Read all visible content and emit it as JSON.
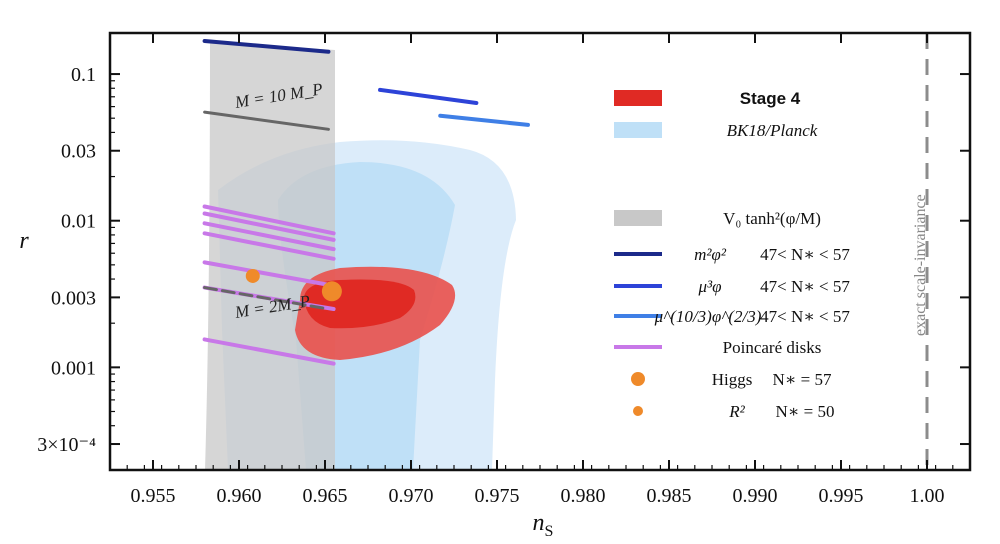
{
  "chart_data": {
    "type": "scatter",
    "xlabel": "n_S",
    "ylabel": "r",
    "xlim": [
      0.9525,
      1.0025
    ],
    "ylim_log10": [
      -3.7,
      -0.72
    ],
    "y_scale": "log",
    "x_ticks": [
      0.955,
      0.96,
      0.965,
      0.97,
      0.975,
      0.98,
      0.985,
      0.99,
      0.995,
      1.0
    ],
    "x_tick_labels": [
      "0.955",
      "0.960",
      "0.965",
      "0.970",
      "0.975",
      "0.980",
      "0.985",
      "0.990",
      "0.995",
      "1.00"
    ],
    "y_ticks": [
      0.1,
      0.03,
      0.01,
      0.003,
      0.001,
      0.0003
    ],
    "y_tick_labels": [
      "0.1",
      "0.03",
      "0.01",
      "0.003",
      "0.001",
      "3×10⁻⁴"
    ],
    "legend_placement": "right",
    "grid": false,
    "colors": {
      "stage4_outer": "#e9514b",
      "stage4_inner": "#e02a24",
      "bk18_outer": "#dcecfa",
      "bk18_inner": "#bfe0f7",
      "tanh_band": "#d0d0d0",
      "phi2": "#1c2a8a",
      "phi1": "#2d43d8",
      "phi23": "#3f7fe6",
      "poincare": "#c878e8",
      "higgs_dot": "#ef8a2a",
      "tanh_line": "#666666",
      "scale_inv": "#8c8c8c"
    },
    "series": [
      {
        "name": "μ³φ",
        "type": "line",
        "x": [
          0.9682,
          0.9738
        ],
        "y": [
          0.078,
          0.0635
        ]
      },
      {
        "name": "μ^(10/3)φ^(2/3)",
        "type": "line",
        "x": [
          0.9717,
          0.9768
        ],
        "y": [
          0.052,
          0.045
        ]
      },
      {
        "name": "m²φ²",
        "type": "line",
        "x": [
          0.958,
          0.9652
        ],
        "y": [
          0.168,
          0.142
        ]
      },
      {
        "name": "Higgs",
        "type": "point",
        "x": [
          0.9654
        ],
        "y": [
          0.0033
        ]
      },
      {
        "name": "R²",
        "type": "point",
        "x": [
          0.9608
        ],
        "y": [
          0.0042
        ]
      },
      {
        "name": "M = 10 M_P",
        "type": "line",
        "x": [
          0.958,
          0.9652
        ],
        "y": [
          0.055,
          0.042
        ]
      },
      {
        "name": "M = 2M_P",
        "type": "line",
        "x": [
          0.958,
          0.9652
        ],
        "y": [
          0.0035,
          0.0025
        ]
      }
    ],
    "poincare_segments": [
      {
        "x": [
          0.958,
          0.9655
        ],
        "y": [
          0.0125,
          0.0082
        ]
      },
      {
        "x": [
          0.958,
          0.9655
        ],
        "y": [
          0.0112,
          0.0074
        ]
      },
      {
        "x": [
          0.958,
          0.9655
        ],
        "y": [
          0.0096,
          0.0064
        ]
      },
      {
        "x": [
          0.958,
          0.9655
        ],
        "y": [
          0.0082,
          0.0055
        ]
      },
      {
        "x": [
          0.958,
          0.9655
        ],
        "y": [
          0.0052,
          0.0036
        ]
      },
      {
        "x": [
          0.958,
          0.9655
        ],
        "y": [
          0.0035,
          0.0025
        ]
      },
      {
        "x": [
          0.958,
          0.9655
        ],
        "y": [
          0.00155,
          0.00106
        ]
      }
    ],
    "scale_invariance_x": 1.0,
    "annotations": {
      "m10": "M = 10 M_P",
      "m2": "M = 2M_P",
      "scale_invariance": "exact scale-invariance"
    },
    "legend": [
      {
        "key": "stage4",
        "label": "Stage 4"
      },
      {
        "key": "bk18",
        "label": "BK18/Planck"
      },
      {
        "key": "tanh",
        "label": "V₀ tanh²(φ/M)"
      },
      {
        "key": "phi2",
        "label": "m²φ²",
        "range": "47< N∗ < 57"
      },
      {
        "key": "phi1",
        "label": "μ³φ",
        "range": "47< N∗ < 57"
      },
      {
        "key": "phi23",
        "label": "μ^(10/3)φ^(2/3)",
        "range": "47< N∗ < 57"
      },
      {
        "key": "poincare",
        "label": "Poincaré disks"
      },
      {
        "key": "higgs",
        "label": "Higgs",
        "range": "N∗ = 57"
      },
      {
        "key": "r2",
        "label": "R²",
        "range": "N∗ = 50"
      }
    ]
  }
}
